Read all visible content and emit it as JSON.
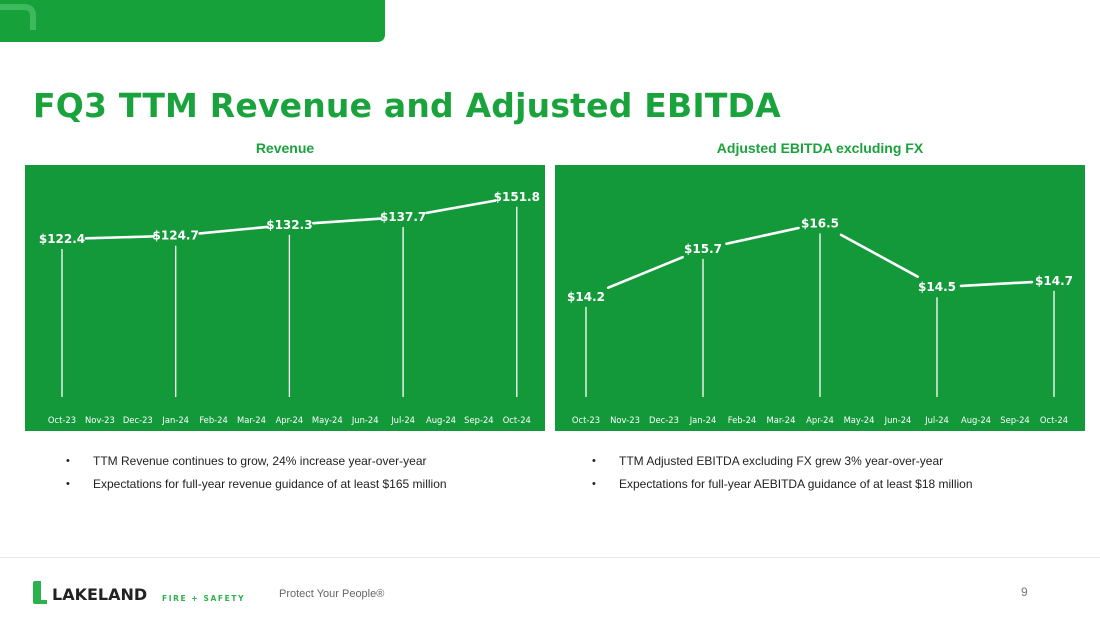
{
  "slide": {
    "title": "FQ3 TTM Revenue and Adjusted EBITDA",
    "page_number": "9",
    "tagline": "Protect Your People®",
    "logo": {
      "wordmark": "LAKELAND",
      "sub": "FIRE + SAFETY",
      "icon": "lakeland-leaf-icon"
    },
    "colors": {
      "brand_green": "#16a13a",
      "panel_green": "#14993a"
    }
  },
  "chart_data": [
    {
      "type": "line",
      "title": "Revenue",
      "categories": [
        "Oct-23",
        "Nov-23",
        "Dec-23",
        "Jan-24",
        "Feb-24",
        "Mar-24",
        "Apr-24",
        "May-24",
        "Jun-24",
        "Jul-24",
        "Aug-24",
        "Sep-24",
        "Oct-24"
      ],
      "series": [
        {
          "values": [
            122.4,
            null,
            null,
            124.7,
            null,
            null,
            132.3,
            null,
            null,
            137.7,
            null,
            null,
            151.8
          ]
        }
      ],
      "data_labels": [
        "$122.4",
        "$124.7",
        "$132.3",
        "$137.7",
        "$151.8"
      ],
      "ylim": [
        0,
        160
      ],
      "grid": false
    },
    {
      "type": "line",
      "title": "Adjusted EBITDA excluding FX",
      "categories": [
        "Oct-23",
        "Nov-23",
        "Dec-23",
        "Jan-24",
        "Feb-24",
        "Mar-24",
        "Apr-24",
        "May-24",
        "Jun-24",
        "Jul-24",
        "Aug-24",
        "Sep-24",
        "Oct-24"
      ],
      "series": [
        {
          "values": [
            14.2,
            null,
            null,
            15.7,
            null,
            null,
            16.5,
            null,
            null,
            14.5,
            null,
            null,
            14.7
          ]
        }
      ],
      "data_labels": [
        "$14.2",
        "$15.7",
        "$16.5",
        "$14.5",
        "$14.7"
      ],
      "ylim": [
        10.5,
        17.7
      ],
      "grid": false
    }
  ],
  "bullets": {
    "left": [
      "TTM Revenue continues to grow, 24% increase year-over-year",
      "Expectations for full-year revenue guidance of at least $165 million"
    ],
    "right": [
      "TTM Adjusted EBITDA excluding FX grew 3% year-over-year",
      "Expectations for full-year AEBITDA guidance of at least $18 million"
    ]
  }
}
